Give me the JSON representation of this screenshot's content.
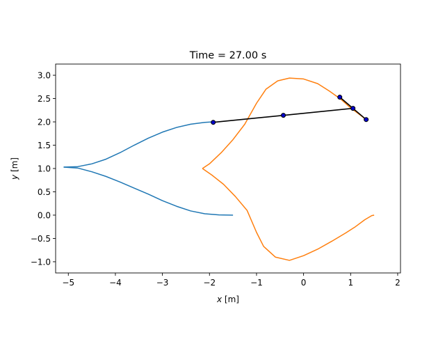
{
  "chart_data": {
    "type": "line",
    "title": "Time = 27.00 s",
    "xlabel": "x [m]",
    "ylabel": "y [m]",
    "xlim": [
      -5.27,
      2.06
    ],
    "ylim": [
      -1.24,
      3.24
    ],
    "grid": false,
    "xticks": [
      -5,
      -4,
      -3,
      -2,
      -1,
      0,
      1,
      2
    ],
    "xtick_labels": [
      "−5",
      "−4",
      "−3",
      "−2",
      "−1",
      "0",
      "1",
      "2"
    ],
    "yticks": [
      -1.0,
      -0.5,
      0.0,
      0.5,
      1.0,
      1.5,
      2.0,
      2.5,
      3.0
    ],
    "ytick_labels": [
      "−1.0",
      "−0.5",
      "0.0",
      "0.5",
      "1.0",
      "1.5",
      "2.0",
      "2.5",
      "3.0"
    ],
    "series": [
      {
        "color": "#1f77b4",
        "x": [
          -1.5,
          -1.8,
          -2.1,
          -2.4,
          -2.7,
          -3.0,
          -3.3,
          -3.6,
          -3.9,
          -4.2,
          -4.5,
          -4.8,
          -5.1
        ],
        "y": [
          0.0,
          0.005,
          0.03,
          0.09,
          0.19,
          0.31,
          0.45,
          0.58,
          0.71,
          0.83,
          0.93,
          1.01,
          1.03
        ]
      },
      {
        "color": "#1f77b4",
        "x": [
          -5.1,
          -4.8,
          -4.5,
          -4.2,
          -3.9,
          -3.6,
          -3.3,
          -3.0,
          -2.7,
          -2.4,
          -2.1,
          -1.92
        ],
        "y": [
          1.03,
          1.04,
          1.1,
          1.2,
          1.34,
          1.5,
          1.65,
          1.78,
          1.88,
          1.95,
          1.99,
          2.0
        ]
      },
      {
        "color": "#ff7f0e",
        "x": [
          1.5,
          1.45,
          1.3,
          1.1,
          0.9,
          0.6,
          0.3,
          0.0,
          -0.3,
          -0.6,
          -0.85,
          -1.0,
          -1.2,
          -1.45,
          -1.7,
          -1.95,
          -2.15
        ],
        "y": [
          0.0,
          -0.01,
          -0.1,
          -0.25,
          -0.38,
          -0.56,
          -0.73,
          -0.87,
          -0.97,
          -0.9,
          -0.67,
          -0.37,
          0.1,
          0.4,
          0.66,
          0.86,
          1.0
        ]
      },
      {
        "color": "#ff7f0e",
        "x": [
          -2.15,
          -2.0,
          -1.75,
          -1.5,
          -1.25,
          -1.0,
          -0.8,
          -0.55,
          -0.3,
          0.0,
          0.3,
          0.55,
          0.8,
          1.0,
          1.2,
          1.33
        ],
        "y": [
          1.0,
          1.1,
          1.34,
          1.62,
          1.95,
          2.4,
          2.7,
          2.88,
          2.94,
          2.92,
          2.82,
          2.66,
          2.48,
          2.3,
          2.15,
          2.05
        ]
      }
    ],
    "pendulum": {
      "color": "#000000",
      "x": [
        -1.92,
        -0.43,
        1.05,
        1.33
      ],
      "y": [
        1.99,
        2.14,
        2.29,
        2.05
      ]
    },
    "short_link": {
      "color": "#000000",
      "x": [
        0.77,
        1.05
      ],
      "y": [
        2.53,
        2.29
      ]
    },
    "nodes": {
      "fill": "#0000cc",
      "x": [
        -1.92,
        -0.43,
        0.77,
        1.05,
        1.33
      ],
      "y": [
        1.99,
        2.14,
        2.53,
        2.29,
        2.05
      ]
    }
  }
}
